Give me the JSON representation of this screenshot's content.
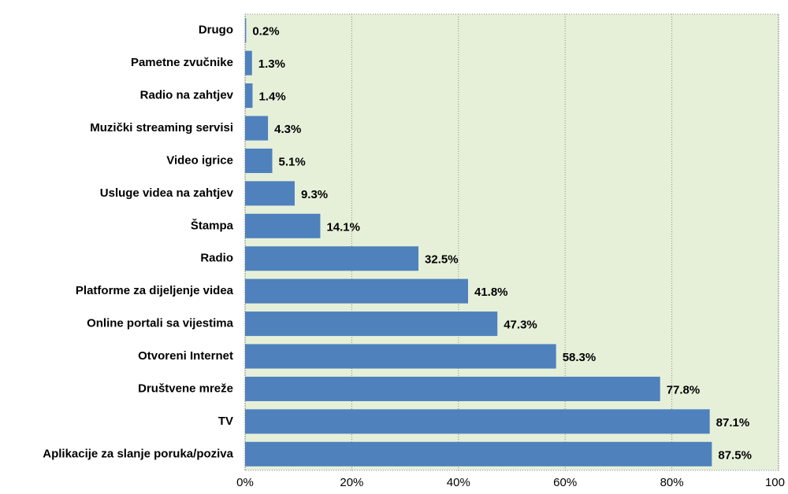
{
  "chart_data": {
    "type": "bar",
    "orientation": "horizontal",
    "categories": [
      "Drugo",
      "Pametne zvučnike",
      "Radio na zahtjev",
      "Muzički streaming servisi",
      "Video igrice",
      "Usluge videa na zahtjev",
      "Štampa",
      "Radio",
      "Platforme za dijeljenje videa",
      "Online portali sa vijestima",
      "Otvoreni Internet",
      "Društvene mreže",
      "TV",
      "Aplikacije za slanje poruka/poziva"
    ],
    "values": [
      0.2,
      1.3,
      1.4,
      4.3,
      5.1,
      9.3,
      14.1,
      32.5,
      41.8,
      47.3,
      58.3,
      77.8,
      87.1,
      87.5
    ],
    "value_labels": [
      "0.2%",
      "1.3%",
      "1.4%",
      "4.3%",
      "5.1%",
      "9.3%",
      "14.1%",
      "32.5%",
      "41.8%",
      "47.3%",
      "58.3%",
      "77.8%",
      "87.1%",
      "87.5%"
    ],
    "color": "#4f81bd",
    "xlim": [
      0,
      100
    ],
    "xticks": [
      {
        "value": 0,
        "label": "0%"
      },
      {
        "value": 20,
        "label": "20%"
      },
      {
        "value": 40,
        "label": "40%"
      },
      {
        "value": 60,
        "label": "60%"
      },
      {
        "value": 80,
        "label": "80%"
      },
      {
        "value": 100,
        "label": "100"
      }
    ],
    "grid": true
  }
}
